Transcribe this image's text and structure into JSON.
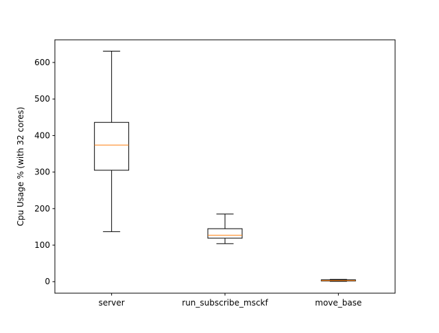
{
  "chart_data": {
    "type": "box",
    "title": "",
    "xlabel": "",
    "ylabel": "Cpu Usage % (with 32 cores)",
    "ylim": [
      -31.5,
      662.0
    ],
    "yticks": [
      0,
      100,
      200,
      300,
      400,
      500,
      600
    ],
    "categories": [
      "server",
      "run_subscribe_msckf",
      "move_base"
    ],
    "boxes": [
      {
        "label": "server",
        "whislo": 137,
        "q1": 305,
        "med": 374,
        "q3": 436,
        "whishi": 631
      },
      {
        "label": "run_subscribe_msckf",
        "whislo": 104,
        "q1": 119,
        "med": 127,
        "q3": 145,
        "whishi": 185
      },
      {
        "label": "move_base",
        "whislo": 1,
        "q1": 2,
        "med": 3,
        "q3": 5,
        "whishi": 6
      }
    ],
    "colors": {
      "box": "#000000",
      "median": "#ff7f0e",
      "axes": "#000000"
    },
    "grid": false,
    "legend": "none"
  }
}
